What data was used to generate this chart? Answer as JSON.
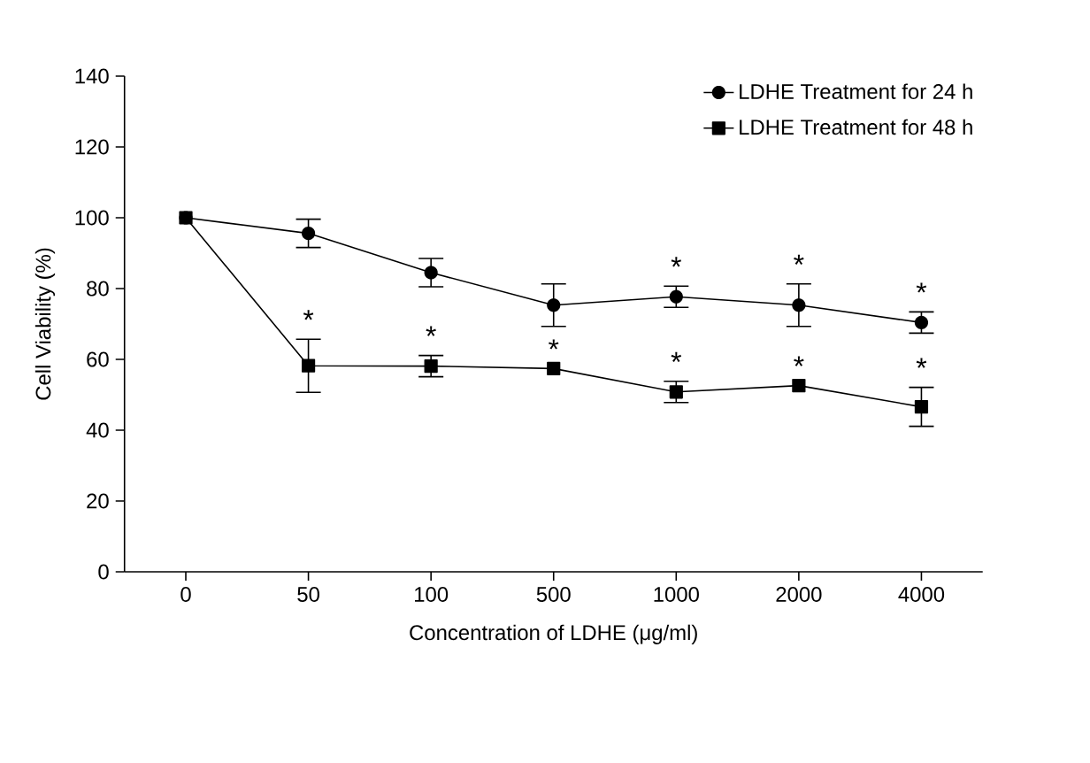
{
  "chart_data": {
    "type": "line",
    "xlabel": "Concentration of LDHE (μg/ml)",
    "ylabel": "Cell Viability (%)",
    "categories": [
      "0",
      "50",
      "100",
      "500",
      "1000",
      "2000",
      "4000"
    ],
    "series": [
      {
        "name": "LDHE Treatment for 24 h",
        "color": "#000000",
        "marker": "circle",
        "values": [
          100,
          95.6,
          84.5,
          75.3,
          77.7,
          75.3,
          70.4
        ],
        "errors": [
          null,
          4,
          4,
          6,
          3,
          6,
          3
        ]
      },
      {
        "name": "LDHE Treatment for 48 h",
        "color": "#000000",
        "marker": "square",
        "values": [
          100,
          58.2,
          58.1,
          57.4,
          50.8,
          52.6,
          46.6
        ],
        "errors": [
          null,
          7.5,
          3,
          null,
          3,
          null,
          5.5
        ]
      }
    ],
    "ylim": [
      0,
      140
    ],
    "yticks": [
      0,
      20,
      40,
      60,
      80,
      100,
      120,
      140
    ],
    "legend": "top right",
    "annotations": [
      {
        "text": "*",
        "x": "1000",
        "y": 77.7
      },
      {
        "text": "*",
        "x": "2000",
        "y": 75.3
      },
      {
        "text": "*",
        "x": "4000",
        "y": 70.4
      },
      {
        "text": "*",
        "x": "50",
        "y": 58.2
      },
      {
        "text": "*",
        "x": "100",
        "y": 58.1
      },
      {
        "text": "*",
        "x": "500",
        "y": 57.4
      },
      {
        "text": "*",
        "x": "1000",
        "y": 50.8
      },
      {
        "text": "*",
        "x": "2000",
        "y": 52.6
      },
      {
        "text": "*",
        "x": "4000",
        "y": 46.6
      }
    ]
  }
}
